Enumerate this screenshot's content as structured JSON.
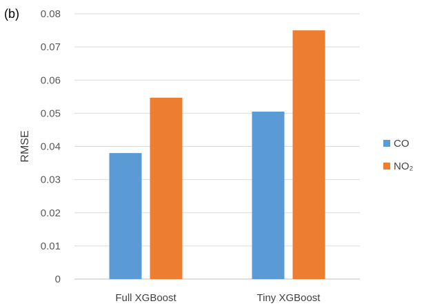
{
  "panel_label": "(b)",
  "chart_data": {
    "type": "bar",
    "title": "",
    "xlabel": "",
    "ylabel": "RMSE",
    "categories": [
      "Full XGBoost",
      "Tiny XGBoost"
    ],
    "series": [
      {
        "name": "CO",
        "color": "#5B9BD5",
        "values": [
          0.038,
          0.0505
        ]
      },
      {
        "name": "NO₂",
        "color": "#ED7D31",
        "values": [
          0.0547,
          0.075
        ]
      }
    ],
    "ylim": [
      0,
      0.08
    ],
    "yticks": [
      "0",
      "0.01",
      "0.02",
      "0.03",
      "0.04",
      "0.05",
      "0.06",
      "0.07",
      "0.08"
    ],
    "grid": true,
    "legend_position": "right"
  }
}
